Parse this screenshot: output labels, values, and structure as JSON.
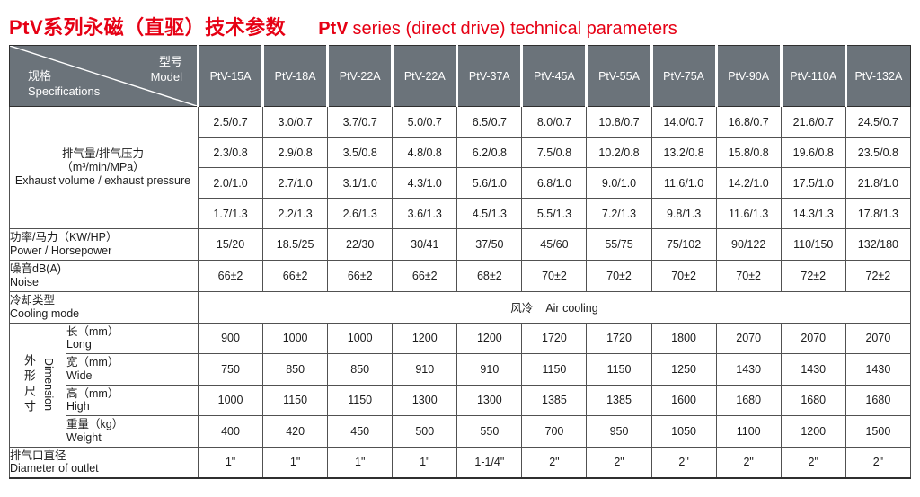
{
  "page": {
    "title_zh": "PtV系列永磁（直驱）技术参数",
    "title_en_prefix": "PtV",
    "title_en_rest": "series (direct drive) technical parameters"
  },
  "colors": {
    "title_red": "#e60014",
    "header_gray": "#6b737a",
    "grid_line": "#515151"
  },
  "table": {
    "corner": {
      "model_zh": "型号",
      "model_en": "Model",
      "spec_zh": "规格",
      "spec_en": "Specifications"
    },
    "models": [
      "PtV-15A",
      "PtV-18A",
      "PtV-22A",
      "PtV-22A",
      "PtV-37A",
      "PtV-45A",
      "PtV-55A",
      "PtV-75A",
      "PtV-90A",
      "PtV-110A",
      "PtV-132A"
    ],
    "exhaust": {
      "label_zh": "排气量/排气压力",
      "label_unit": "（m³/min/MPa）",
      "label_en": "Exhaust volume / exhaust pressure",
      "rows": [
        [
          "2.5/0.7",
          "3.0/0.7",
          "3.7/0.7",
          "5.0/0.7",
          "6.5/0.7",
          "8.0/0.7",
          "10.8/0.7",
          "14.0/0.7",
          "16.8/0.7",
          "21.6/0.7",
          "24.5/0.7"
        ],
        [
          "2.3/0.8",
          "2.9/0.8",
          "3.5/0.8",
          "4.8/0.8",
          "6.2/0.8",
          "7.5/0.8",
          "10.2/0.8",
          "13.2/0.8",
          "15.8/0.8",
          "19.6/0.8",
          "23.5/0.8"
        ],
        [
          "2.0/1.0",
          "2.7/1.0",
          "3.1/1.0",
          "4.3/1.0",
          "5.6/1.0",
          "6.8/1.0",
          "9.0/1.0",
          "11.6/1.0",
          "14.2/1.0",
          "17.5/1.0",
          "21.8/1.0"
        ],
        [
          "1.7/1.3",
          "2.2/1.3",
          "2.6/1.3",
          "3.6/1.3",
          "4.5/1.3",
          "5.5/1.3",
          "7.2/1.3",
          "9.8/1.3",
          "11.6/1.3",
          "14.3/1.3",
          "17.8/1.3"
        ]
      ]
    },
    "power": {
      "label_zh": "功率/马力（KW/HP）",
      "label_en": "Power / Horsepower",
      "values": [
        "15/20",
        "18.5/25",
        "22/30",
        "30/41",
        "37/50",
        "45/60",
        "55/75",
        "75/102",
        "90/122",
        "110/150",
        "132/180"
      ]
    },
    "noise": {
      "label_zh": "噪音dB(A)",
      "label_en": "Noise",
      "values": [
        "66±2",
        "66±2",
        "66±2",
        "66±2",
        "68±2",
        "70±2",
        "70±2",
        "70±2",
        "70±2",
        "72±2",
        "72±2"
      ]
    },
    "cooling": {
      "label_zh": "冷却类型",
      "label_en": "Cooling mode",
      "value_zh": "风冷",
      "value_en": "Air cooling"
    },
    "dimension": {
      "group_zh": "外形尺寸",
      "group_en": "Dimension",
      "rows": [
        {
          "label_zh": "长（mm）",
          "label_en": "Long",
          "values": [
            "900",
            "1000",
            "1000",
            "1200",
            "1200",
            "1720",
            "1720",
            "1800",
            "2070",
            "2070",
            "2070"
          ]
        },
        {
          "label_zh": "宽（mm）",
          "label_en": "Wide",
          "values": [
            "750",
            "850",
            "850",
            "910",
            "910",
            "1150",
            "1150",
            "1250",
            "1430",
            "1430",
            "1430"
          ]
        },
        {
          "label_zh": "高（mm）",
          "label_en": "High",
          "values": [
            "1000",
            "1150",
            "1150",
            "1300",
            "1300",
            "1385",
            "1385",
            "1600",
            "1680",
            "1680",
            "1680"
          ]
        },
        {
          "label_zh": "重量（kg）",
          "label_en": "Weight",
          "values": [
            "400",
            "420",
            "450",
            "500",
            "550",
            "700",
            "950",
            "1050",
            "1100",
            "1200",
            "1500"
          ]
        }
      ]
    },
    "outlet": {
      "label_zh": "排气口直径",
      "label_en": "Diameter of outlet",
      "values": [
        "1\"",
        "1\"",
        "1\"",
        "1\"",
        "1-1/4\"",
        "2\"",
        "2\"",
        "2\"",
        "2\"",
        "2\"",
        "2\""
      ]
    }
  }
}
